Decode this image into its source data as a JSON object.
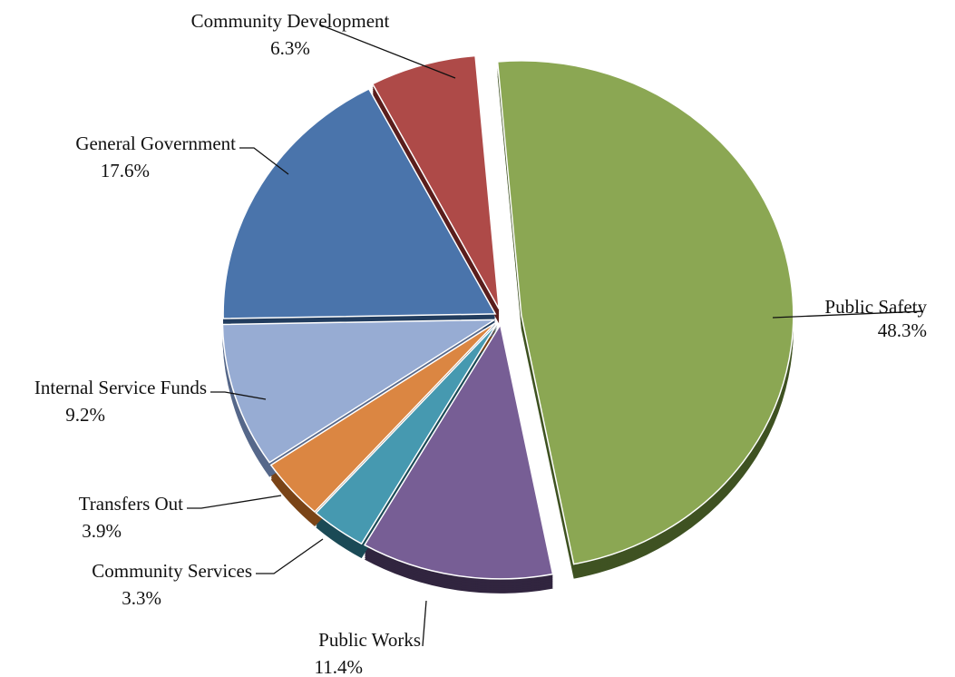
{
  "chart_data": {
    "type": "pie",
    "style": "3d-exploded",
    "slices": [
      {
        "name": "Public Safety",
        "value": 48.3,
        "label": "48.3%",
        "color": "#8BA753",
        "dark": "#3F5222"
      },
      {
        "name": "Public Works",
        "value": 11.4,
        "label": "11.4%",
        "color": "#775E95",
        "dark": "#31253F"
      },
      {
        "name": "Community Services",
        "value": 3.3,
        "label": "3.3%",
        "color": "#4699B0",
        "dark": "#1B4A56"
      },
      {
        "name": "Transfers Out",
        "value": 3.9,
        "label": "3.9%",
        "color": "#DB8642",
        "dark": "#7A4417"
      },
      {
        "name": "Internal Service Funds",
        "value": 9.2,
        "label": "9.2%",
        "color": "#97ACD3",
        "dark": "#56688A"
      },
      {
        "name": "General Government",
        "value": 17.6,
        "label": "17.6%",
        "color": "#4A74AB",
        "dark": "#223D5E"
      },
      {
        "name": "Community Development",
        "value": 6.3,
        "label": "6.3%",
        "color": "#AE4A48",
        "dark": "#5A1E1D"
      }
    ]
  }
}
